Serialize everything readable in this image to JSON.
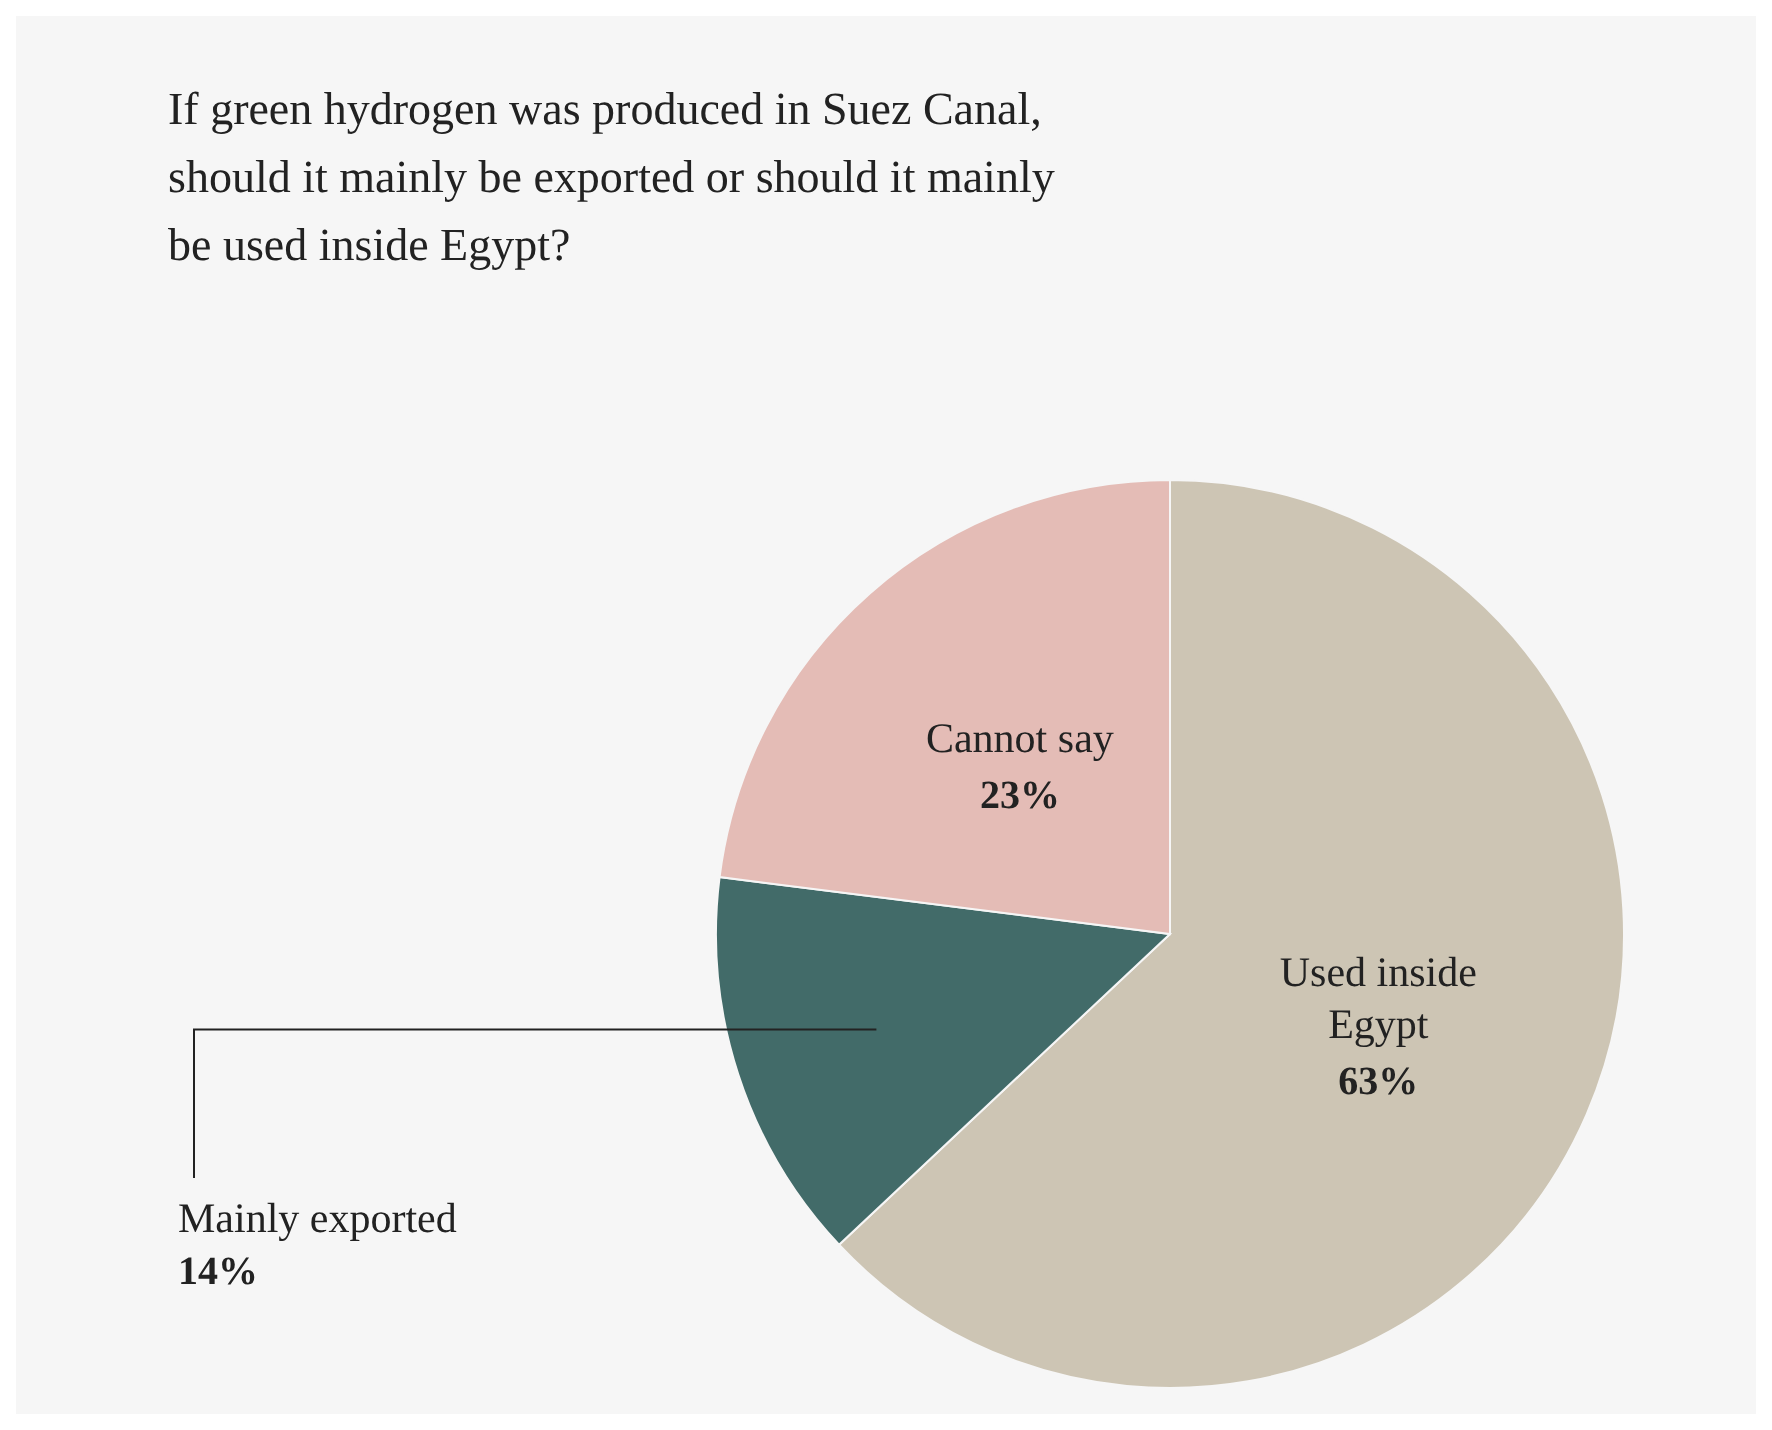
{
  "chart_data": {
    "type": "pie",
    "title": "If green hydrogen was produced in Suez Canal, should it mainly be exported or should it mainly be used inside Egypt?",
    "categories": [
      "Used inside Egypt",
      "Mainly exported",
      "Cannot say"
    ],
    "values": [
      63,
      14,
      23
    ],
    "colors": [
      "#cdc5b4",
      "#426b69",
      "#e4bcb6"
    ],
    "value_labels": [
      "63%",
      "14%",
      "23%"
    ]
  }
}
